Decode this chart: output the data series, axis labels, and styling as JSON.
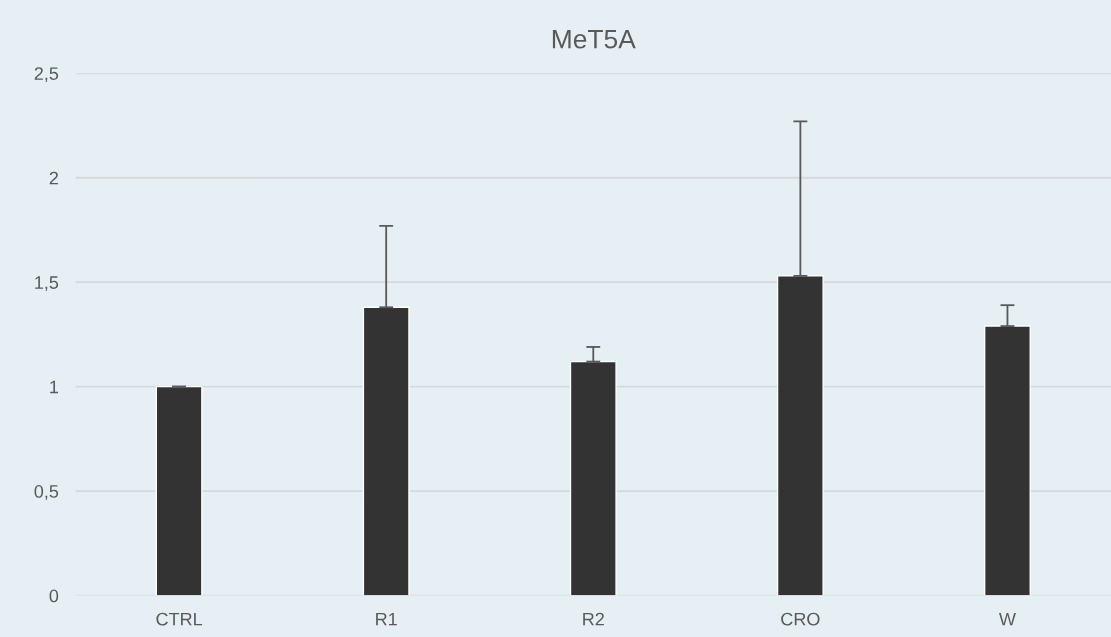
{
  "chart_data": {
    "type": "bar",
    "title": "MeT5A",
    "categories": [
      "CTRL",
      "R1",
      "R2",
      "CRO",
      "W"
    ],
    "values": [
      1.0,
      1.38,
      1.12,
      1.53,
      1.29
    ],
    "errors": [
      [
        1.0,
        1.0
      ],
      [
        1.38,
        1.77
      ],
      [
        1.12,
        1.19
      ],
      [
        1.53,
        2.27
      ],
      [
        1.29,
        1.39
      ]
    ],
    "color": "#333333",
    "ylim": [
      0,
      2.5
    ],
    "yticks": [
      0,
      {
        "value": 0.5,
        "label": "0,5"
      },
      1,
      {
        "value": 1.5,
        "label": "1,5"
      },
      2,
      {
        "value": 2.5,
        "label": "2,5"
      }
    ],
    "grid": "y"
  }
}
